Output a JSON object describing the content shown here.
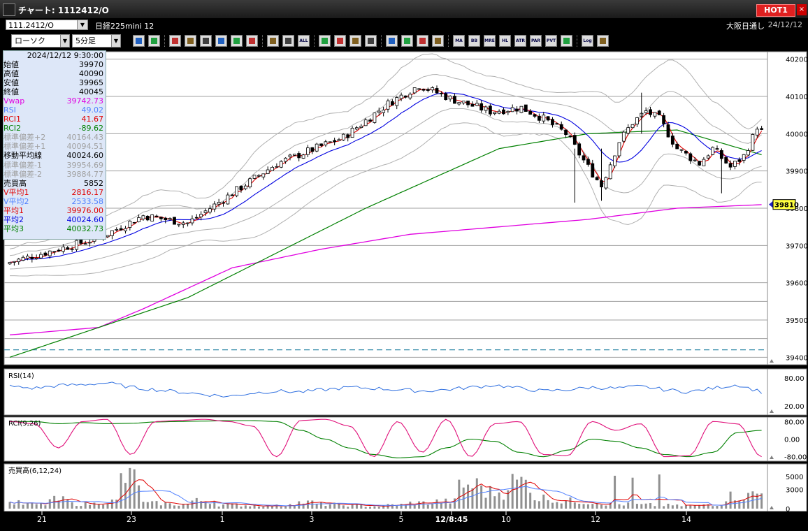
{
  "window": {
    "title": "チャート: 1112412/O",
    "hot_label": "HOT1",
    "close_label": "×"
  },
  "info": {
    "code": "111.2412/O",
    "instrument": "日経225mini 12",
    "market": "大阪日通し",
    "date": "24/12/12"
  },
  "toolbar": {
    "chart_type": "ローソク",
    "period": "5分足",
    "buttons": [
      "zoom",
      "crosshair",
      "pen",
      "paint",
      "cursor",
      "undo",
      "note",
      "trash",
      "bar-width",
      "bar-narrow",
      "ALL",
      "settings",
      "tools",
      "palette",
      "fetch",
      "search",
      "compare",
      "mark",
      "info",
      "MA",
      "BB",
      "MRE",
      "HL",
      "ATR",
      "PAR",
      "PVT",
      "box",
      "Log",
      "save"
    ]
  },
  "data_panel": {
    "datetime": "2024/12/12 9:30:00",
    "rows": [
      {
        "label": "始値",
        "value": "39970",
        "color": "#000000"
      },
      {
        "label": "高値",
        "value": "40090",
        "color": "#000000"
      },
      {
        "label": "安値",
        "value": "39965",
        "color": "#000000"
      },
      {
        "label": "終値",
        "value": "40045",
        "color": "#000000"
      },
      {
        "label": "Vwap",
        "value": "39742.73",
        "color": "#e000e0"
      },
      {
        "label": "RSI",
        "value": "49.02",
        "color": "#5080ff"
      },
      {
        "label": "RCI1",
        "value": "41.67",
        "color": "#e00000"
      },
      {
        "label": "RCI2",
        "value": "-89.62",
        "color": "#008000"
      },
      {
        "label": "標準偏差+2",
        "value": "40164.43",
        "color": "#a0a0a0"
      },
      {
        "label": "標準偏差+1",
        "value": "40094.51",
        "color": "#a0a0a0"
      },
      {
        "label": "移動平均線",
        "value": "40024.60",
        "color": "#000000"
      },
      {
        "label": "標準偏差-1",
        "value": "39954.69",
        "color": "#a0a0a0"
      },
      {
        "label": "標準偏差-2",
        "value": "39884.77",
        "color": "#a0a0a0"
      },
      {
        "label": "売買高",
        "value": "5852",
        "color": "#000000"
      },
      {
        "label": "V平均1",
        "value": "2816.17",
        "color": "#e00000"
      },
      {
        "label": "V平均2",
        "value": "2533.58",
        "color": "#5080ff"
      },
      {
        "label": "平均1",
        "value": "39976.00",
        "color": "#e00000"
      },
      {
        "label": "平均2",
        "value": "40024.60",
        "color": "#0000e0"
      },
      {
        "label": "平均3",
        "value": "40032.73",
        "color": "#008000"
      }
    ]
  },
  "price_axis": {
    "ticks": [
      "40200",
      "40100",
      "40000",
      "39900",
      "39800",
      "39700",
      "39600",
      "39500",
      "39400"
    ],
    "marker": "39810"
  },
  "rsi_panel": {
    "label": "RSI(14)",
    "ticks": [
      "80.00",
      "20.00"
    ]
  },
  "rci_panel": {
    "label": "RCI(9,26)",
    "ticks": [
      "80.00",
      "0.00",
      "-80.00"
    ]
  },
  "volume_panel": {
    "label": "売買高(6,12,24)",
    "ticks": [
      "5000",
      "3000",
      "0"
    ]
  },
  "time_axis": {
    "labels": [
      "21",
      "23",
      "1",
      "3",
      "5",
      "12/8:45",
      "10",
      "12",
      "14"
    ]
  },
  "chart_data": [
    {
      "type": "candlestick",
      "ylim": [
        39380,
        40220
      ],
      "ohlc_sample": [
        [
          39650,
          39665,
          39630,
          39645
        ],
        [
          39640,
          39700,
          39630,
          39690
        ],
        [
          39700,
          39760,
          39690,
          39750
        ],
        [
          39760,
          39820,
          39750,
          39810
        ],
        [
          39820,
          39860,
          39780,
          39800
        ],
        [
          39800,
          39850,
          39780,
          39840
        ],
        [
          39850,
          39900,
          39840,
          39890
        ],
        [
          39900,
          39940,
          39880,
          39920
        ],
        [
          39930,
          39980,
          39920,
          39970
        ],
        [
          39980,
          40030,
          39970,
          40020
        ],
        [
          40030,
          40080,
          40020,
          40070
        ],
        [
          40080,
          40150,
          40070,
          40140
        ],
        [
          40130,
          40140,
          40070,
          40080
        ],
        [
          40080,
          40090,
          40040,
          40050
        ],
        [
          40050,
          40110,
          40040,
          40100
        ],
        [
          40090,
          40100,
          40060,
          40070
        ],
        [
          40060,
          40070,
          40000,
          40010
        ],
        [
          40000,
          40010,
          39820,
          39860
        ],
        [
          39870,
          39960,
          39860,
          39950
        ],
        [
          39960,
          40080,
          39950,
          40060
        ],
        [
          40060,
          40110,
          40020,
          40040
        ],
        [
          40030,
          40040,
          39950,
          39960
        ],
        [
          39950,
          39960,
          39840,
          39890
        ],
        [
          39900,
          39960,
          39890,
          39950
        ],
        [
          39960,
          40000,
          39950,
          39980
        ],
        [
          39970,
          39990,
          39920,
          39930
        ],
        [
          39930,
          39960,
          39900,
          39920
        ],
        [
          39920,
          39950,
          39900,
          39940
        ],
        [
          39940,
          39950,
          39880,
          39900
        ],
        [
          39900,
          40030,
          39890,
          40020
        ],
        [
          40020,
          40040,
          39980,
          39990
        ],
        [
          39980,
          39990,
          39880,
          39890
        ]
      ],
      "series": [
        {
          "name": "平均1",
          "color": "#e00000"
        },
        {
          "name": "平均2",
          "color": "#0000e0"
        },
        {
          "name": "平均3",
          "color": "#008000"
        },
        {
          "name": "Vwap",
          "color": "#e000e0"
        }
      ],
      "current_price": 39810
    },
    {
      "type": "line",
      "series": [
        {
          "name": "RSI",
          "values": [
            62,
            58,
            64,
            66,
            70,
            60,
            55,
            50,
            45,
            40,
            48,
            52,
            50,
            55,
            60,
            58,
            55,
            52,
            55,
            60,
            65,
            58,
            52,
            55,
            60,
            58,
            62,
            55,
            50,
            58,
            66,
            50
          ]
        }
      ],
      "ylim": [
        0,
        100
      ]
    },
    {
      "type": "line",
      "series": [
        {
          "name": "RCI1",
          "values": [
            80,
            70,
            -40,
            80,
            90,
            -70,
            80,
            85,
            90,
            80,
            60,
            -80,
            85,
            90,
            60,
            -80,
            80,
            -60,
            90,
            -80,
            70,
            80,
            -70,
            -75,
            80,
            40,
            70,
            -80,
            -75,
            80,
            70,
            -80
          ]
        },
        {
          "name": "RCI2",
          "values": [
            80,
            80,
            70,
            75,
            70,
            72,
            78,
            80,
            82,
            84,
            84,
            80,
            40,
            0,
            -40,
            -70,
            -85,
            -80,
            -40,
            0,
            -10,
            -60,
            -80,
            -50,
            0,
            -10,
            -40,
            -70,
            -80,
            -60,
            30,
            40
          ]
        }
      ],
      "ylim": [
        -100,
        100
      ]
    },
    {
      "type": "bar",
      "series": [
        {
          "name": "売買高",
          "values": [
            1200,
            900,
            1800,
            1000,
            1500,
            6200,
            1100,
            900,
            1600,
            800,
            700,
            600,
            1300,
            900,
            700,
            500,
            800,
            1200,
            1500,
            4800,
            3400,
            5500,
            2200,
            1600,
            1400,
            900,
            800,
            700,
            600,
            900,
            2600,
            3100
          ]
        }
      ],
      "ylim": [
        0,
        6500
      ]
    }
  ]
}
